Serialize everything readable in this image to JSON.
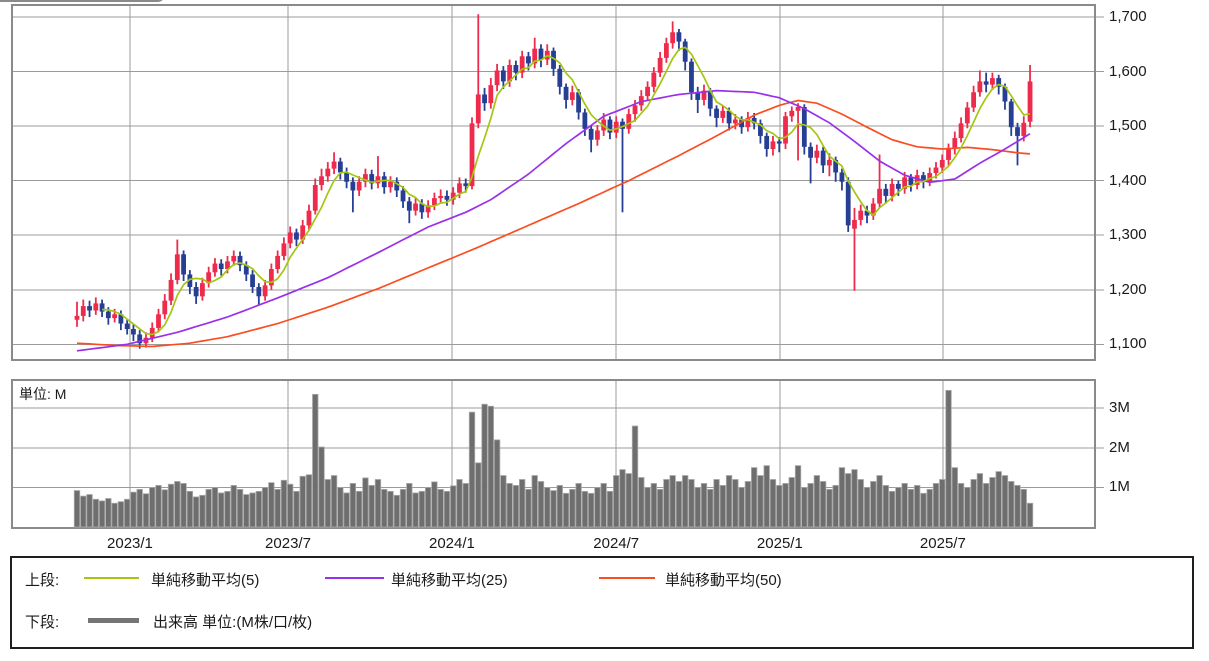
{
  "colors": {
    "up_candle": "#ee2b4c",
    "down_candle": "#263e94",
    "sma5": "#a4c613",
    "sma25": "#9a30ea",
    "sma50": "#fb4d21",
    "volume_bar": "#6e6e6e",
    "volume_bar_edge": "#aaaaaa",
    "grid": "#9b9b9b",
    "panel_border": "#8a8a8a",
    "axis_text": "#1a1a1a"
  },
  "price_axis": {
    "labels": [
      "1,700",
      "1,600",
      "1,500",
      "1,400",
      "1,300",
      "1,200",
      "1,100"
    ],
    "values": [
      1700,
      1600,
      1500,
      1400,
      1300,
      1200,
      1100
    ]
  },
  "volume_axis": {
    "unit_label": "単位: M",
    "labels": [
      "3M",
      "2M",
      "1M"
    ],
    "values": [
      3,
      2,
      1
    ]
  },
  "x_axis": {
    "labels": [
      "2023/1",
      "2023/7",
      "2024/1",
      "2024/7",
      "2025/1",
      "2025/7"
    ],
    "week_positions": [
      8.45,
      33.65,
      59.8,
      86.0,
      112.1,
      138.1
    ]
  },
  "legend": {
    "upper_row_label": "上段:",
    "lower_row_label": "下段:",
    "sma_items": [
      {
        "label": "単純移動平均(5)",
        "color": "#a4c613"
      },
      {
        "label": "単純移動平均(25)",
        "color": "#9a30ea"
      },
      {
        "label": "単純移動平均(50)",
        "color": "#fb4d21"
      }
    ],
    "volume_item": {
      "label": "出来高 単位:(M株/口/枚)",
      "color": "#757575"
    }
  },
  "chart_data": {
    "type": "candlestick+volume",
    "timeframe": "weekly",
    "x_range": [
      "2022/11",
      "2025/10"
    ],
    "price_axis_range": [
      1050,
      1722
    ],
    "price_gridlines": [
      1100,
      1200,
      1300,
      1400,
      1500,
      1600,
      1700
    ],
    "volume_gridlines_m": [
      1,
      2,
      3
    ],
    "grid": true,
    "legend_position": "bottom",
    "series_names": [
      "ローソク足",
      "単純移動平均(5)",
      "単純移動平均(25)",
      "単純移動平均(50)",
      "出来高"
    ],
    "candles_ohlc": [
      [
        1145,
        1178,
        1132,
        1152
      ],
      [
        1152,
        1182,
        1142,
        1170
      ],
      [
        1170,
        1180,
        1150,
        1162
      ],
      [
        1162,
        1186,
        1154,
        1175
      ],
      [
        1175,
        1182,
        1150,
        1160
      ],
      [
        1160,
        1168,
        1136,
        1148
      ],
      [
        1148,
        1165,
        1140,
        1155
      ],
      [
        1155,
        1162,
        1126,
        1138
      ],
      [
        1138,
        1146,
        1118,
        1128
      ],
      [
        1128,
        1136,
        1106,
        1118
      ],
      [
        1118,
        1126,
        1092,
        1102
      ],
      [
        1102,
        1122,
        1094,
        1112
      ],
      [
        1112,
        1140,
        1104,
        1130
      ],
      [
        1130,
        1165,
        1122,
        1155
      ],
      [
        1155,
        1192,
        1146,
        1180
      ],
      [
        1180,
        1230,
        1172,
        1218
      ],
      [
        1218,
        1292,
        1210,
        1265
      ],
      [
        1265,
        1272,
        1216,
        1228
      ],
      [
        1228,
        1236,
        1192,
        1205
      ],
      [
        1205,
        1214,
        1174,
        1188
      ],
      [
        1188,
        1222,
        1180,
        1212
      ],
      [
        1212,
        1242,
        1204,
        1232
      ],
      [
        1232,
        1258,
        1224,
        1248
      ],
      [
        1248,
        1256,
        1226,
        1238
      ],
      [
        1238,
        1262,
        1230,
        1252
      ],
      [
        1252,
        1272,
        1244,
        1262
      ],
      [
        1262,
        1270,
        1234,
        1245
      ],
      [
        1245,
        1252,
        1216,
        1228
      ],
      [
        1228,
        1236,
        1194,
        1205
      ],
      [
        1205,
        1212,
        1172,
        1188
      ],
      [
        1188,
        1218,
        1180,
        1208
      ],
      [
        1208,
        1248,
        1200,
        1238
      ],
      [
        1238,
        1272,
        1230,
        1262
      ],
      [
        1262,
        1296,
        1254,
        1285
      ],
      [
        1285,
        1316,
        1276,
        1305
      ],
      [
        1305,
        1312,
        1280,
        1292
      ],
      [
        1292,
        1328,
        1284,
        1318
      ],
      [
        1318,
        1356,
        1310,
        1345
      ],
      [
        1345,
        1404,
        1338,
        1392
      ],
      [
        1392,
        1422,
        1382,
        1408
      ],
      [
        1408,
        1434,
        1398,
        1422
      ],
      [
        1422,
        1452,
        1412,
        1435
      ],
      [
        1435,
        1442,
        1402,
        1415
      ],
      [
        1415,
        1424,
        1386,
        1398
      ],
      [
        1398,
        1406,
        1342,
        1382
      ],
      [
        1382,
        1408,
        1372,
        1398
      ],
      [
        1398,
        1422,
        1388,
        1412
      ],
      [
        1412,
        1420,
        1384,
        1395
      ],
      [
        1395,
        1445,
        1386,
        1408
      ],
      [
        1408,
        1416,
        1376,
        1388
      ],
      [
        1388,
        1408,
        1378,
        1398
      ],
      [
        1398,
        1406,
        1370,
        1382
      ],
      [
        1382,
        1390,
        1350,
        1362
      ],
      [
        1362,
        1370,
        1322,
        1345
      ],
      [
        1345,
        1368,
        1336,
        1358
      ],
      [
        1358,
        1366,
        1330,
        1342
      ],
      [
        1342,
        1364,
        1332,
        1355
      ],
      [
        1355,
        1378,
        1346,
        1368
      ],
      [
        1368,
        1384,
        1358,
        1372
      ],
      [
        1372,
        1382,
        1354,
        1365
      ],
      [
        1365,
        1388,
        1356,
        1378
      ],
      [
        1378,
        1406,
        1368,
        1395
      ],
      [
        1395,
        1404,
        1378,
        1390
      ],
      [
        1390,
        1516,
        1384,
        1505
      ],
      [
        1505,
        1705,
        1496,
        1558
      ],
      [
        1558,
        1570,
        1528,
        1542
      ],
      [
        1542,
        1588,
        1532,
        1575
      ],
      [
        1575,
        1614,
        1564,
        1602
      ],
      [
        1602,
        1610,
        1568,
        1582
      ],
      [
        1582,
        1622,
        1572,
        1612
      ],
      [
        1612,
        1620,
        1584,
        1598
      ],
      [
        1598,
        1638,
        1588,
        1628
      ],
      [
        1628,
        1636,
        1602,
        1615
      ],
      [
        1615,
        1662,
        1606,
        1642
      ],
      [
        1642,
        1650,
        1608,
        1622
      ],
      [
        1622,
        1650,
        1612,
        1638
      ],
      [
        1638,
        1644,
        1592,
        1605
      ],
      [
        1605,
        1612,
        1558,
        1572
      ],
      [
        1572,
        1578,
        1532,
        1548
      ],
      [
        1548,
        1574,
        1538,
        1562
      ],
      [
        1562,
        1568,
        1512,
        1525
      ],
      [
        1525,
        1532,
        1482,
        1495
      ],
      [
        1495,
        1502,
        1452,
        1475
      ],
      [
        1475,
        1502,
        1464,
        1492
      ],
      [
        1492,
        1524,
        1482,
        1512
      ],
      [
        1512,
        1518,
        1476,
        1488
      ],
      [
        1488,
        1518,
        1478,
        1508
      ],
      [
        1508,
        1514,
        1342,
        1495
      ],
      [
        1495,
        1532,
        1486,
        1522
      ],
      [
        1522,
        1548,
        1508,
        1538
      ],
      [
        1538,
        1566,
        1528,
        1555
      ],
      [
        1555,
        1582,
        1546,
        1572
      ],
      [
        1572,
        1608,
        1562,
        1598
      ],
      [
        1598,
        1636,
        1590,
        1625
      ],
      [
        1625,
        1662,
        1616,
        1652
      ],
      [
        1652,
        1692,
        1642,
        1672
      ],
      [
        1672,
        1678,
        1638,
        1655
      ],
      [
        1655,
        1660,
        1602,
        1618
      ],
      [
        1618,
        1624,
        1548,
        1562
      ],
      [
        1562,
        1572,
        1524,
        1548
      ],
      [
        1548,
        1576,
        1538,
        1565
      ],
      [
        1565,
        1570,
        1518,
        1532
      ],
      [
        1532,
        1538,
        1498,
        1515
      ],
      [
        1515,
        1538,
        1506,
        1528
      ],
      [
        1528,
        1534,
        1492,
        1505
      ],
      [
        1505,
        1522,
        1494,
        1512
      ],
      [
        1512,
        1518,
        1486,
        1498
      ],
      [
        1498,
        1526,
        1490,
        1515
      ],
      [
        1515,
        1524,
        1494,
        1505
      ],
      [
        1505,
        1512,
        1468,
        1482
      ],
      [
        1482,
        1488,
        1444,
        1458
      ],
      [
        1458,
        1482,
        1446,
        1472
      ],
      [
        1472,
        1480,
        1452,
        1468
      ],
      [
        1468,
        1526,
        1458,
        1518
      ],
      [
        1518,
        1536,
        1508,
        1528
      ],
      [
        1528,
        1542,
        1437,
        1535
      ],
      [
        1535,
        1540,
        1448,
        1462
      ],
      [
        1462,
        1470,
        1395,
        1442
      ],
      [
        1442,
        1466,
        1432,
        1455
      ],
      [
        1455,
        1462,
        1414,
        1428
      ],
      [
        1428,
        1450,
        1408,
        1438
      ],
      [
        1438,
        1444,
        1398,
        1415
      ],
      [
        1415,
        1422,
        1382,
        1398
      ],
      [
        1398,
        1406,
        1306,
        1318
      ],
      [
        1312,
        1350,
        1198,
        1328
      ],
      [
        1328,
        1356,
        1318,
        1345
      ],
      [
        1345,
        1354,
        1322,
        1336
      ],
      [
        1336,
        1368,
        1328,
        1358
      ],
      [
        1358,
        1448,
        1350,
        1385
      ],
      [
        1385,
        1394,
        1358,
        1372
      ],
      [
        1372,
        1404,
        1362,
        1394
      ],
      [
        1394,
        1400,
        1372,
        1385
      ],
      [
        1385,
        1416,
        1376,
        1406
      ],
      [
        1406,
        1412,
        1380,
        1392
      ],
      [
        1392,
        1420,
        1384,
        1410
      ],
      [
        1410,
        1416,
        1386,
        1398
      ],
      [
        1398,
        1424,
        1390,
        1414
      ],
      [
        1414,
        1434,
        1404,
        1424
      ],
      [
        1424,
        1448,
        1414,
        1438
      ],
      [
        1438,
        1468,
        1428,
        1458
      ],
      [
        1458,
        1490,
        1448,
        1478
      ],
      [
        1478,
        1516,
        1470,
        1505
      ],
      [
        1505,
        1544,
        1496,
        1534
      ],
      [
        1534,
        1574,
        1526,
        1562
      ],
      [
        1562,
        1602,
        1554,
        1582
      ],
      [
        1582,
        1598,
        1562,
        1576
      ],
      [
        1576,
        1598,
        1566,
        1588
      ],
      [
        1588,
        1594,
        1558,
        1572
      ],
      [
        1572,
        1578,
        1530,
        1545
      ],
      [
        1545,
        1550,
        1482,
        1498
      ],
      [
        1498,
        1506,
        1428,
        1482
      ],
      [
        1482,
        1518,
        1472,
        1506
      ],
      [
        1508,
        1612,
        1498,
        1582
      ]
    ],
    "volumes_m": [
      0.92,
      0.78,
      0.82,
      0.7,
      0.66,
      0.72,
      0.6,
      0.64,
      0.7,
      0.88,
      0.95,
      0.84,
      1.0,
      1.05,
      0.94,
      1.08,
      1.15,
      1.1,
      0.9,
      0.76,
      0.8,
      0.95,
      1.0,
      0.86,
      0.9,
      1.05,
      0.95,
      0.82,
      0.86,
      0.9,
      1.0,
      1.12,
      0.95,
      1.18,
      1.08,
      0.9,
      1.28,
      1.32,
      3.35,
      2.02,
      1.2,
      1.3,
      1.0,
      0.86,
      1.1,
      0.9,
      1.24,
      1.05,
      1.2,
      0.95,
      0.9,
      0.8,
      0.95,
      1.1,
      0.86,
      0.9,
      1.0,
      1.14,
      0.95,
      0.9,
      1.04,
      1.2,
      1.1,
      2.9,
      1.62,
      3.1,
      3.05,
      2.2,
      1.3,
      1.1,
      1.05,
      1.2,
      0.95,
      1.3,
      1.15,
      1.0,
      0.92,
      1.05,
      0.85,
      0.95,
      1.1,
      0.9,
      0.85,
      1.0,
      1.1,
      0.9,
      1.3,
      1.45,
      1.35,
      2.55,
      1.25,
      1.0,
      1.1,
      0.95,
      1.2,
      1.3,
      1.15,
      1.3,
      1.2,
      1.0,
      1.1,
      0.95,
      1.2,
      1.05,
      1.3,
      1.2,
      1.0,
      1.15,
      1.5,
      1.3,
      1.55,
      1.2,
      1.05,
      1.1,
      1.25,
      1.55,
      1.0,
      1.1,
      1.3,
      1.15,
      0.95,
      1.05,
      1.5,
      1.35,
      1.45,
      1.2,
      1.0,
      1.15,
      1.3,
      1.05,
      0.9,
      1.0,
      1.1,
      0.95,
      1.05,
      0.85,
      0.95,
      1.1,
      1.2,
      3.45,
      1.5,
      1.1,
      1.0,
      1.2,
      1.35,
      1.1,
      1.25,
      1.4,
      1.3,
      1.15,
      1.05,
      0.95,
      0.6
    ],
    "sma5_rule": "mean of previous 5 weekly closes",
    "sma25_anchors": [
      [
        0,
        1088
      ],
      [
        8,
        1100
      ],
      [
        16,
        1122
      ],
      [
        24,
        1150
      ],
      [
        32,
        1185
      ],
      [
        40,
        1222
      ],
      [
        48,
        1268
      ],
      [
        56,
        1315
      ],
      [
        62,
        1342
      ],
      [
        66,
        1365
      ],
      [
        72,
        1412
      ],
      [
        78,
        1468
      ],
      [
        84,
        1518
      ],
      [
        90,
        1545
      ],
      [
        96,
        1558
      ],
      [
        102,
        1565
      ],
      [
        108,
        1562
      ],
      [
        112,
        1552
      ],
      [
        116,
        1532
      ],
      [
        120,
        1506
      ],
      [
        124,
        1472
      ],
      [
        128,
        1436
      ],
      [
        132,
        1410
      ],
      [
        136,
        1397
      ],
      [
        140,
        1403
      ],
      [
        144,
        1432
      ],
      [
        148,
        1458
      ],
      [
        152,
        1486
      ]
    ],
    "sma50_anchors": [
      [
        0,
        1102
      ],
      [
        6,
        1098
      ],
      [
        12,
        1096
      ],
      [
        18,
        1102
      ],
      [
        24,
        1114
      ],
      [
        32,
        1138
      ],
      [
        40,
        1168
      ],
      [
        48,
        1202
      ],
      [
        56,
        1240
      ],
      [
        64,
        1278
      ],
      [
        72,
        1318
      ],
      [
        80,
        1358
      ],
      [
        88,
        1400
      ],
      [
        96,
        1446
      ],
      [
        102,
        1482
      ],
      [
        108,
        1520
      ],
      [
        112,
        1538
      ],
      [
        115,
        1547
      ],
      [
        118,
        1542
      ],
      [
        122,
        1522
      ],
      [
        126,
        1498
      ],
      [
        130,
        1475
      ],
      [
        134,
        1462
      ],
      [
        138,
        1458
      ],
      [
        142,
        1461
      ],
      [
        146,
        1457
      ],
      [
        150,
        1451
      ],
      [
        152,
        1449
      ]
    ]
  }
}
